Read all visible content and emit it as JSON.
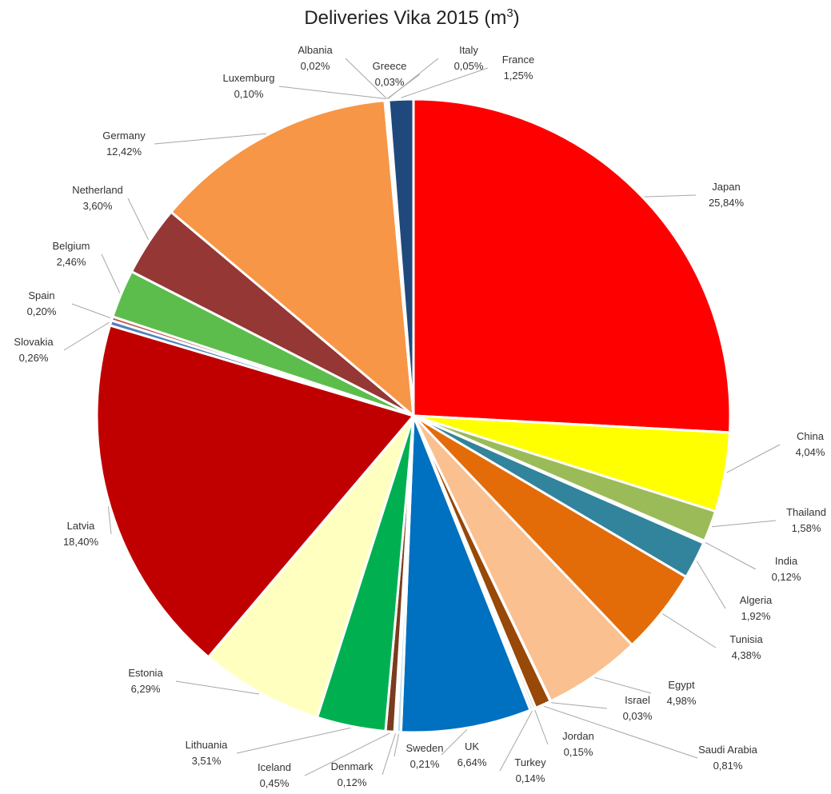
{
  "chart_data": {
    "type": "pie",
    "title": "Deliveries  Vika 2015 (m",
    "title_superscript": "3",
    "title_suffix": ")",
    "slices": [
      {
        "name": "Japan",
        "label": "25,84%",
        "value": 25.84,
        "color": "#ff0000"
      },
      {
        "name": "China",
        "label": "4,04%",
        "value": 4.04,
        "color": "#ffff00"
      },
      {
        "name": "Thailand",
        "label": "1,58%",
        "value": 1.58,
        "color": "#9bbb59"
      },
      {
        "name": "India",
        "label": "0,12%",
        "value": 0.12,
        "color": "#d9d9d9"
      },
      {
        "name": "Algeria",
        "label": "1,92%",
        "value": 1.92,
        "color": "#31849b"
      },
      {
        "name": "Tunisia",
        "label": "4,38%",
        "value": 4.38,
        "color": "#e36c09"
      },
      {
        "name": "Egypt",
        "label": "4,98%",
        "value": 4.98,
        "color": "#fac090"
      },
      {
        "name": "Israel",
        "label": "0,03%",
        "value": 0.03,
        "color": "#7f7f7f"
      },
      {
        "name": "Saudi Arabia",
        "label": "0,81%",
        "value": 0.81,
        "color": "#984807"
      },
      {
        "name": "Jordan",
        "label": "0,15%",
        "value": 0.15,
        "color": "#c4bd97"
      },
      {
        "name": "Turkey",
        "label": "0,14%",
        "value": 0.14,
        "color": "#8db3e2"
      },
      {
        "name": "UK",
        "label": "6,64%",
        "value": 6.64,
        "color": "#0070c0"
      },
      {
        "name": "Sweden",
        "label": "0,21%",
        "value": 0.21,
        "color": "#b7dde8"
      },
      {
        "name": "Denmark",
        "label": "0,12%",
        "value": 0.12,
        "color": "#ffc000"
      },
      {
        "name": "Iceland",
        "label": "0,45%",
        "value": 0.45,
        "color": "#7a3b1e"
      },
      {
        "name": "Lithuania",
        "label": "3,51%",
        "value": 3.51,
        "color": "#00b050"
      },
      {
        "name": "Estonia",
        "label": "6,29%",
        "value": 6.29,
        "color": "#ffffc0"
      },
      {
        "name": "Latvia",
        "label": "18,40%",
        "value": 18.4,
        "color": "#c00000"
      },
      {
        "name": "Slovakia",
        "label": "0,26%",
        "value": 0.26,
        "color": "#4f81bd"
      },
      {
        "name": "Spain",
        "label": "0,20%",
        "value": 0.2,
        "color": "#c0504d"
      },
      {
        "name": "Belgium",
        "label": "2,46%",
        "value": 2.46,
        "color": "#5cbd4d"
      },
      {
        "name": "Netherland",
        "label": "3,60%",
        "value": 3.6,
        "color": "#953735"
      },
      {
        "name": "Germany",
        "label": "12,42%",
        "value": 12.42,
        "color": "#f79646"
      },
      {
        "name": "Luxemburg",
        "label": "0,10%",
        "value": 0.1,
        "color": "#b3a2c7"
      },
      {
        "name": "Albania",
        "label": "0,02%",
        "value": 0.02,
        "color": "#4bacc6"
      },
      {
        "name": "Greece",
        "label": "0,03%",
        "value": 0.03,
        "color": "#8064a2"
      },
      {
        "name": "Italy",
        "label": "0,05%",
        "value": 0.05,
        "color": "#92cddc"
      },
      {
        "name": "France",
        "label": "1,25%",
        "value": 1.25,
        "color": "#1f497d"
      }
    ]
  }
}
